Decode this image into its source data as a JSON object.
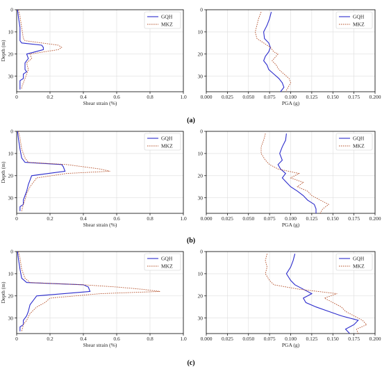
{
  "colors": {
    "gqh": "#2a2acc",
    "mkz": "#b4502a",
    "grid": "#dddddd",
    "axis": "#000000"
  },
  "panel_labels": [
    "(a)",
    "(b)",
    "(c)"
  ],
  "chart_data": [
    {
      "type": "line",
      "panel": "(a)",
      "xlabel": "Shear strain (%)",
      "ylabel": "Depth (m)",
      "xlim": [
        0,
        1
      ],
      "ylim": [
        0,
        37
      ],
      "y_inverted": true,
      "xticks": [
        "0",
        "0.2",
        "0.4",
        "0.6",
        "0.8",
        "1.0"
      ],
      "yticks": [
        "0",
        "10",
        "20",
        "30"
      ],
      "grid": true,
      "legend": "top-right",
      "series": [
        {
          "name": "GQH",
          "style": "solid",
          "x": [
            0.005,
            0.01,
            0.02,
            0.02,
            0.03,
            0.15,
            0.16,
            0.16,
            0.06,
            0.07,
            0.05,
            0.05,
            0.06,
            0.04,
            0.04,
            0.02,
            0.02,
            0.02
          ],
          "y": [
            0,
            3,
            8,
            14,
            15,
            16,
            17,
            18,
            20,
            22,
            24,
            27,
            28,
            29,
            31,
            32,
            34,
            36
          ]
        },
        {
          "name": "MKZ",
          "style": "dotted",
          "x": [
            0.01,
            0.02,
            0.03,
            0.04,
            0.05,
            0.15,
            0.25,
            0.27,
            0.25,
            0.08,
            0.09,
            0.06,
            0.07,
            0.06,
            0.05,
            0.04,
            0.03,
            0.03
          ],
          "y": [
            0,
            3,
            8,
            13,
            14,
            15,
            16,
            17,
            18,
            20,
            22,
            24,
            27,
            29,
            31,
            33,
            35,
            36
          ]
        }
      ]
    },
    {
      "type": "line",
      "panel": "(a)",
      "xlabel": "PGA (g)",
      "ylabel": "",
      "xlim": [
        0,
        0.2
      ],
      "ylim": [
        0,
        37
      ],
      "y_inverted": true,
      "xticks": [
        "0.000",
        "0.025",
        "0.050",
        "0.075",
        "0.100",
        "0.125",
        "0.150",
        "0.175",
        "0.200"
      ],
      "yticks": [
        "0",
        "10",
        "20",
        "30"
      ],
      "grid": true,
      "legend": "top-right",
      "series": [
        {
          "name": "GQH",
          "style": "solid",
          "x": [
            0.077,
            0.075,
            0.072,
            0.068,
            0.069,
            0.074,
            0.076,
            0.074,
            0.07,
            0.068,
            0.072,
            0.074,
            0.08,
            0.086,
            0.09,
            0.092,
            0.088
          ],
          "y": [
            1,
            4,
            7,
            10,
            13,
            15,
            17,
            19,
            21,
            23,
            25,
            27,
            29,
            31,
            33,
            35,
            37
          ]
        },
        {
          "name": "MKZ",
          "style": "dotted",
          "x": [
            0.065,
            0.062,
            0.06,
            0.058,
            0.06,
            0.068,
            0.076,
            0.08,
            0.085,
            0.078,
            0.083,
            0.086,
            0.092,
            0.098,
            0.1,
            0.097,
            0.094
          ],
          "y": [
            1,
            4,
            7,
            10,
            13,
            15,
            17,
            19,
            20,
            23,
            25,
            27,
            29,
            31,
            33,
            35,
            37
          ]
        }
      ]
    },
    {
      "type": "line",
      "panel": "(b)",
      "xlabel": "Shear strain (%)",
      "ylabel": "Depth (m)",
      "xlim": [
        0,
        1
      ],
      "ylim": [
        0,
        37
      ],
      "y_inverted": true,
      "xticks": [
        "0",
        "0.2",
        "0.4",
        "0.6",
        "0.8",
        "1.0"
      ],
      "yticks": [
        "0",
        "10",
        "20",
        "30"
      ],
      "grid": true,
      "legend": "top-right",
      "series": [
        {
          "name": "GQH",
          "style": "solid",
          "x": [
            0.005,
            0.01,
            0.02,
            0.03,
            0.05,
            0.27,
            0.28,
            0.29,
            0.09,
            0.08,
            0.07,
            0.06,
            0.05,
            0.04,
            0.04,
            0.02,
            0.02
          ],
          "y": [
            0,
            3,
            8,
            12,
            14,
            15,
            16,
            18,
            20,
            22,
            24,
            27,
            29,
            31,
            33,
            34,
            36
          ]
        },
        {
          "name": "MKZ",
          "style": "dotted",
          "x": [
            0.01,
            0.02,
            0.03,
            0.05,
            0.07,
            0.3,
            0.4,
            0.5,
            0.56,
            0.3,
            0.12,
            0.1,
            0.08,
            0.06,
            0.05,
            0.04,
            0.03
          ],
          "y": [
            0,
            3,
            8,
            12,
            14,
            15,
            16,
            17,
            18,
            19,
            21,
            23,
            25,
            28,
            31,
            33,
            36
          ]
        }
      ]
    },
    {
      "type": "line",
      "panel": "(b)",
      "xlabel": "PGA (g)",
      "ylabel": "",
      "xlim": [
        0,
        0.2
      ],
      "ylim": [
        0,
        37
      ],
      "y_inverted": true,
      "xticks": [
        "0.000",
        "0.025",
        "0.050",
        "0.075",
        "0.100",
        "0.125",
        "0.150",
        "0.175",
        "0.200"
      ],
      "yticks": [
        "0",
        "10",
        "20",
        "30"
      ],
      "grid": true,
      "legend": "top-right",
      "series": [
        {
          "name": "GQH",
          "style": "solid",
          "x": [
            0.095,
            0.094,
            0.09,
            0.087,
            0.09,
            0.085,
            0.088,
            0.094,
            0.09,
            0.095,
            0.1,
            0.108,
            0.115,
            0.12,
            0.128,
            0.13,
            0.13
          ],
          "y": [
            1,
            4,
            7,
            10,
            13,
            15,
            17,
            19,
            21,
            23,
            25,
            27,
            29,
            31,
            33,
            35,
            37
          ]
        },
        {
          "name": "MKZ",
          "style": "dotted",
          "x": [
            0.07,
            0.068,
            0.065,
            0.065,
            0.07,
            0.075,
            0.085,
            0.11,
            0.1,
            0.115,
            0.108,
            0.12,
            0.125,
            0.135,
            0.145,
            0.138,
            0.135
          ],
          "y": [
            1,
            4,
            7,
            10,
            13,
            15,
            17,
            19,
            21,
            23,
            25,
            27,
            29,
            31,
            33,
            35,
            37
          ]
        }
      ]
    },
    {
      "type": "line",
      "panel": "(c)",
      "xlabel": "Shear strain (%)",
      "ylabel": "Depth (m)",
      "xlim": [
        0,
        1
      ],
      "ylim": [
        0,
        37
      ],
      "y_inverted": true,
      "xticks": [
        "0",
        "0.2",
        "0.4",
        "0.6",
        "0.8",
        "1.0"
      ],
      "yticks": [
        "0",
        "10",
        "20",
        "30"
      ],
      "grid": true,
      "legend": "top-right",
      "series": [
        {
          "name": "GQH",
          "style": "solid",
          "x": [
            0.005,
            0.01,
            0.02,
            0.03,
            0.06,
            0.4,
            0.43,
            0.44,
            0.12,
            0.1,
            0.08,
            0.07,
            0.06,
            0.04,
            0.04,
            0.02,
            0.02
          ],
          "y": [
            0,
            3,
            8,
            12,
            14,
            15,
            16,
            18,
            20,
            22,
            24,
            27,
            29,
            31,
            33,
            34,
            36
          ]
        },
        {
          "name": "MKZ",
          "style": "dotted",
          "x": [
            0.01,
            0.02,
            0.03,
            0.05,
            0.08,
            0.4,
            0.6,
            0.75,
            0.86,
            0.5,
            0.2,
            0.17,
            0.12,
            0.08,
            0.06,
            0.04,
            0.03
          ],
          "y": [
            0,
            3,
            8,
            12,
            14,
            15,
            16,
            17,
            18,
            19,
            21,
            23,
            25,
            28,
            31,
            33,
            36
          ]
        }
      ]
    },
    {
      "type": "line",
      "panel": "(c)",
      "xlabel": "PGA (g)",
      "ylabel": "",
      "xlim": [
        0,
        0.2
      ],
      "ylim": [
        0,
        37
      ],
      "y_inverted": true,
      "xticks": [
        "0.000",
        "0.025",
        "0.050",
        "0.075",
        "0.100",
        "0.125",
        "0.150",
        "0.175",
        "0.200"
      ],
      "yticks": [
        "0",
        "10",
        "20",
        "30"
      ],
      "grid": true,
      "legend": "top-right",
      "series": [
        {
          "name": "GQH",
          "style": "solid",
          "x": [
            0.105,
            0.103,
            0.1,
            0.095,
            0.1,
            0.105,
            0.115,
            0.125,
            0.115,
            0.118,
            0.13,
            0.145,
            0.16,
            0.18,
            0.175,
            0.165,
            0.17
          ],
          "y": [
            1,
            4,
            7,
            10,
            13,
            15,
            17,
            19,
            21,
            23,
            25,
            27,
            29,
            31,
            33,
            35,
            37
          ]
        },
        {
          "name": "MKZ",
          "style": "dotted",
          "x": [
            0.072,
            0.07,
            0.072,
            0.07,
            0.075,
            0.08,
            0.11,
            0.155,
            0.14,
            0.15,
            0.16,
            0.165,
            0.175,
            0.185,
            0.19,
            0.178,
            0.18
          ],
          "y": [
            1,
            4,
            7,
            10,
            13,
            15,
            17,
            19,
            21,
            23,
            25,
            27,
            29,
            31,
            33,
            35,
            37
          ]
        }
      ]
    }
  ]
}
